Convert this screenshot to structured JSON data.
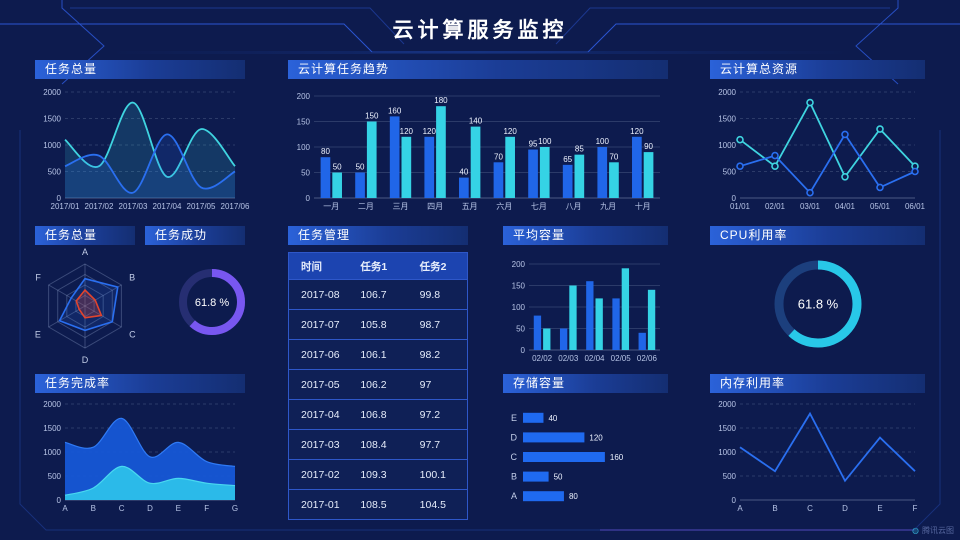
{
  "page": {
    "title": "云计算服务监控",
    "watermark": "腾讯云图"
  },
  "colors": {
    "background": "#0d1b4e",
    "blue": "#2066e8",
    "line_blue": "#2a6ff0",
    "cyan": "#35d3e5",
    "line_cyan": "#3fd4e0",
    "purple": "#7857f0",
    "gauge_cyan": "#28c8e8",
    "radar_red": "#e0442e",
    "header_gradient_left": "#2b62d9",
    "header_gradient_right": "#142e72"
  },
  "panels": {
    "p1": {
      "title": "任务总量"
    },
    "p2": {
      "title": "云计算任务趋势"
    },
    "p3": {
      "title": "云计算总资源"
    },
    "p4": {
      "title": "任务总量"
    },
    "p4b": {
      "title": "任务成功"
    },
    "p5": {
      "title": "任务管理"
    },
    "p6": {
      "title": "平均容量"
    },
    "p7": {
      "title": "CPU利用率"
    },
    "p8": {
      "title": "任务完成率"
    },
    "p9": {
      "title": "存储容量"
    },
    "p10": {
      "title": "内存利用率"
    }
  },
  "table": {
    "columns": [
      "时间",
      "任务1",
      "任务2"
    ],
    "rows": [
      [
        "2017-08",
        "106.7",
        "99.8"
      ],
      [
        "2017-07",
        "105.8",
        "98.7"
      ],
      [
        "2017-06",
        "106.1",
        "98.2"
      ],
      [
        "2017-05",
        "106.2",
        "97"
      ],
      [
        "2017-04",
        "106.8",
        "97.2"
      ],
      [
        "2017-03",
        "108.4",
        "97.7"
      ],
      [
        "2017-02",
        "109.3",
        "100.1"
      ],
      [
        "2017-01",
        "108.5",
        "104.5"
      ]
    ]
  },
  "chart_data": [
    {
      "id": "c1",
      "type": "line",
      "title": "任务总量",
      "smooth": true,
      "area": true,
      "markers": false,
      "x": [
        "2017/01",
        "2017/02",
        "2017/03",
        "2017/04",
        "2017/05",
        "2017/06"
      ],
      "series": [
        {
          "name": "cyan",
          "color": "#3fd4e0",
          "values": [
            1100,
            600,
            1800,
            400,
            1300,
            600
          ]
        },
        {
          "name": "blue",
          "color": "#2a6ff0",
          "values": [
            600,
            800,
            100,
            1200,
            200,
            500
          ]
        }
      ],
      "yticks": [
        0,
        500,
        1000,
        1500,
        2000
      ],
      "ylim": [
        0,
        2000
      ],
      "grid": "dashed"
    },
    {
      "id": "c2",
      "type": "bar",
      "title": "云计算任务趋势",
      "labels": true,
      "categories": [
        "一月",
        "二月",
        "三月",
        "四月",
        "五月",
        "六月",
        "七月",
        "八月",
        "九月",
        "十月"
      ],
      "series": [
        {
          "name": "blue",
          "color": "#2066e8",
          "values": [
            80,
            50,
            160,
            120,
            40,
            70,
            95,
            65,
            100,
            120
          ]
        },
        {
          "name": "cyan",
          "color": "#35d3e5",
          "values": [
            50,
            150,
            120,
            180,
            140,
            120,
            100,
            85,
            70,
            90
          ]
        }
      ],
      "yticks": [
        0,
        50,
        100,
        150,
        200
      ],
      "ylim": [
        0,
        200
      ]
    },
    {
      "id": "c3",
      "type": "line",
      "title": "云计算总资源",
      "smooth": false,
      "area": false,
      "markers": true,
      "x": [
        "01/01",
        "02/01",
        "03/01",
        "04/01",
        "05/01",
        "06/01"
      ],
      "series": [
        {
          "name": "cyan",
          "color": "#3fd4e0",
          "values": [
            1100,
            600,
            1800,
            400,
            1300,
            600
          ]
        },
        {
          "name": "blue",
          "color": "#2a6ff0",
          "values": [
            600,
            800,
            100,
            1200,
            200,
            500
          ]
        }
      ],
      "yticks": [
        0,
        500,
        1000,
        1500,
        2000
      ],
      "ylim": [
        0,
        2000
      ],
      "grid": "dashed"
    },
    {
      "id": "c4",
      "type": "radar",
      "title": "任务总量",
      "axes": [
        "A",
        "B",
        "C",
        "D",
        "E",
        "F"
      ],
      "max": 100,
      "series": [
        {
          "name": "blue",
          "color": "#2a6ff0",
          "values": [
            65,
            90,
            75,
            58,
            70,
            38
          ]
        },
        {
          "name": "red",
          "color": "#e0442e",
          "values": [
            38,
            28,
            45,
            28,
            16,
            24
          ]
        }
      ]
    },
    {
      "id": "c5",
      "type": "donut",
      "title": "任务成功",
      "value": 61.8,
      "label": "61.8 %",
      "color": "#7857f0",
      "track": "#262e72"
    },
    {
      "id": "c6",
      "type": "bar",
      "title": "平均容量",
      "labels": false,
      "categories": [
        "02/02",
        "02/03",
        "02/04",
        "02/05",
        "02/06"
      ],
      "series": [
        {
          "name": "blue",
          "color": "#2066e8",
          "values": [
            80,
            50,
            160,
            120,
            40
          ]
        },
        {
          "name": "cyan",
          "color": "#35d3e5",
          "values": [
            50,
            150,
            120,
            190,
            140
          ]
        }
      ],
      "yticks": [
        0,
        50,
        100,
        150,
        200
      ],
      "ylim": [
        0,
        200
      ]
    },
    {
      "id": "c7",
      "type": "donut",
      "title": "CPU利用率",
      "value": 61.8,
      "label": "61.8 %",
      "color": "#28c8e8",
      "track": "#1c3f7d"
    },
    {
      "id": "c8",
      "type": "stacked-area",
      "title": "任务完成率",
      "x": [
        "A",
        "B",
        "C",
        "D",
        "E",
        "F",
        "G"
      ],
      "series": [
        {
          "name": "blue",
          "color": "#1657d6",
          "edge": "#2f7af5",
          "values": [
            1200,
            1100,
            1700,
            900,
            1200,
            800,
            700
          ]
        },
        {
          "name": "cyan",
          "color": "#2cc0ea",
          "edge": "#49d8f0",
          "values": [
            100,
            250,
            700,
            350,
            450,
            350,
            300
          ]
        }
      ],
      "yticks": [
        0,
        500,
        1000,
        1500,
        2000
      ],
      "ylim": [
        0,
        2000
      ],
      "grid": "dashed"
    },
    {
      "id": "c9",
      "type": "hbar",
      "title": "存储容量",
      "color": "#1f6af0",
      "max": 170,
      "categories": [
        "E",
        "D",
        "C",
        "B",
        "A"
      ],
      "values": [
        40,
        120,
        160,
        50,
        80
      ]
    },
    {
      "id": "c10",
      "type": "line",
      "title": "内存利用率",
      "smooth": false,
      "area": false,
      "markers": false,
      "x": [
        "A",
        "B",
        "C",
        "D",
        "E",
        "F"
      ],
      "series": [
        {
          "name": "blue",
          "color": "#2a6ff0",
          "values": [
            1100,
            600,
            1800,
            400,
            1300,
            600
          ]
        }
      ],
      "yticks": [
        0,
        500,
        1000,
        1500,
        2000
      ],
      "ylim": [
        0,
        2000
      ],
      "grid": "dashed"
    }
  ]
}
